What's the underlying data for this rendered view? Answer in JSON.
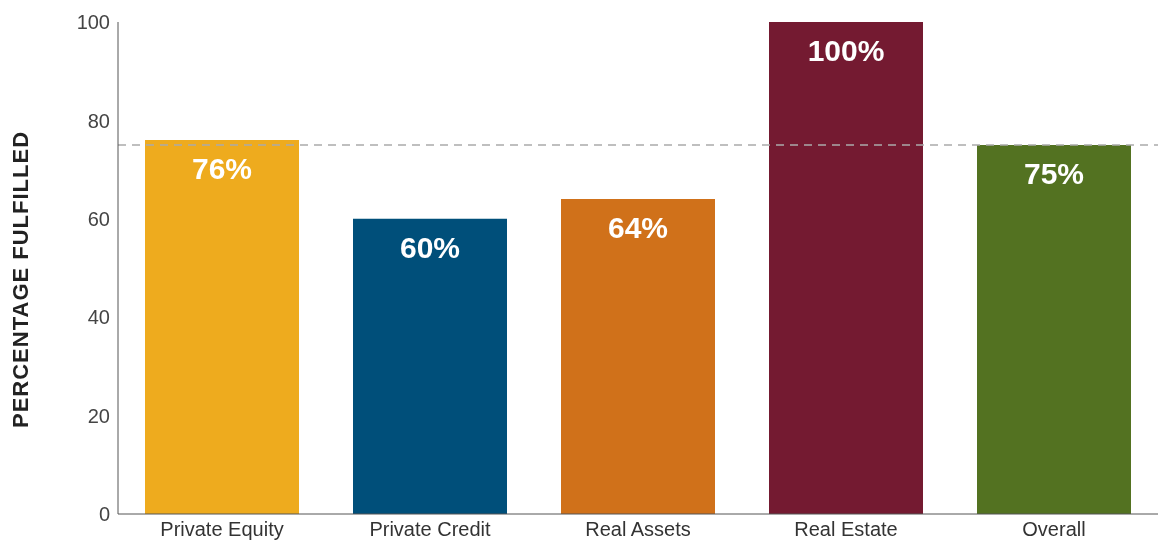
{
  "chart_data": {
    "type": "bar",
    "ylabel": "PERCENTAGE  FULFILLED",
    "categories": [
      "Private Equity",
      "Private Credit",
      "Real Assets",
      "Real Estate",
      "Overall"
    ],
    "values": [
      76,
      60,
      64,
      100,
      75
    ],
    "colors": [
      "#eeab1e",
      "#004f7a",
      "#d0711a",
      "#741a31",
      "#537221"
    ],
    "value_labels": [
      "76%",
      "60%",
      "64%",
      "100%",
      "75%"
    ],
    "ylim": [
      0,
      100
    ],
    "yticks": [
      0,
      20,
      40,
      60,
      80,
      100
    ],
    "grid": false,
    "ref_lines": [
      {
        "axis": "y",
        "value": 75,
        "color": "#aaaaaa",
        "line_style": "dashed"
      }
    ]
  }
}
